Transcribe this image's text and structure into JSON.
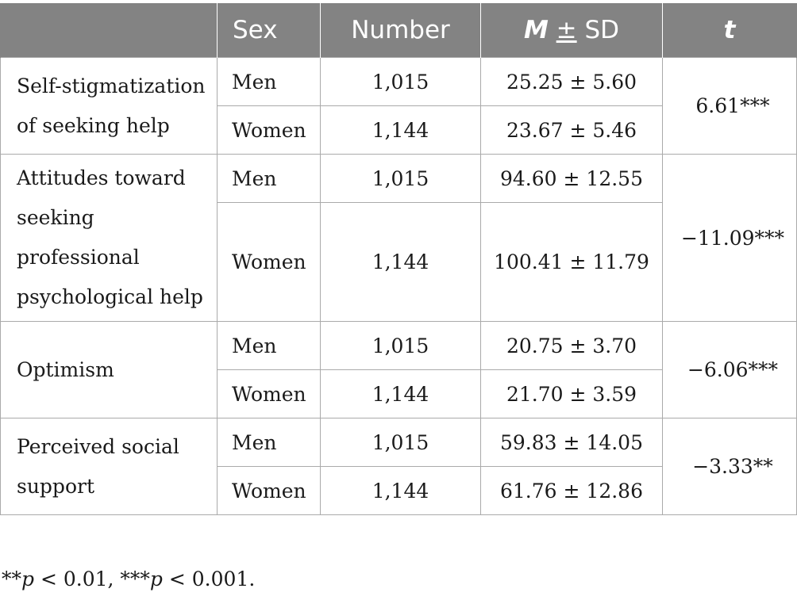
{
  "table": {
    "headers": {
      "variable": "",
      "sex": "Sex",
      "number": "Number",
      "m": "M",
      "pm": "±",
      "sd": "SD",
      "t": "t"
    },
    "groups": [
      {
        "variable": "Self-stigmatization of seeking help",
        "t": "6.61***",
        "rows": [
          {
            "sex": "Men",
            "number": "1,015",
            "msd": "25.25 ± 5.60"
          },
          {
            "sex": "Women",
            "number": "1,144",
            "msd": "23.67 ± 5.46"
          }
        ]
      },
      {
        "variable": "Attitudes toward seeking professional psychological help",
        "t": "−11.09***",
        "rows": [
          {
            "sex": "Men",
            "number": "1,015",
            "msd": "94.60 ± 12.55"
          },
          {
            "sex": "Women",
            "number": "1,144",
            "msd": "100.41 ± 11.79"
          }
        ]
      },
      {
        "variable": "Optimism",
        "t": "−6.06***",
        "rows": [
          {
            "sex": "Men",
            "number": "1,015",
            "msd": "20.75 ± 3.70"
          },
          {
            "sex": "Women",
            "number": "1,144",
            "msd": "21.70 ± 3.59"
          }
        ]
      },
      {
        "variable": "Perceived social support",
        "t": "−3.33**",
        "rows": [
          {
            "sex": "Men",
            "number": "1,015",
            "msd": "59.83 ± 14.05"
          },
          {
            "sex": "Women",
            "number": "1,144",
            "msd": "61.76 ± 12.86"
          }
        ]
      }
    ]
  },
  "footnote": {
    "stars_a": "**",
    "p_a": "p",
    "text_a": " < 0.01, ",
    "stars_b": "***",
    "p_b": "p",
    "text_b": " < 0.001."
  },
  "colors": {
    "header_bg": "#838383",
    "header_text": "#ffffff",
    "grid": "#aaaaaa"
  }
}
